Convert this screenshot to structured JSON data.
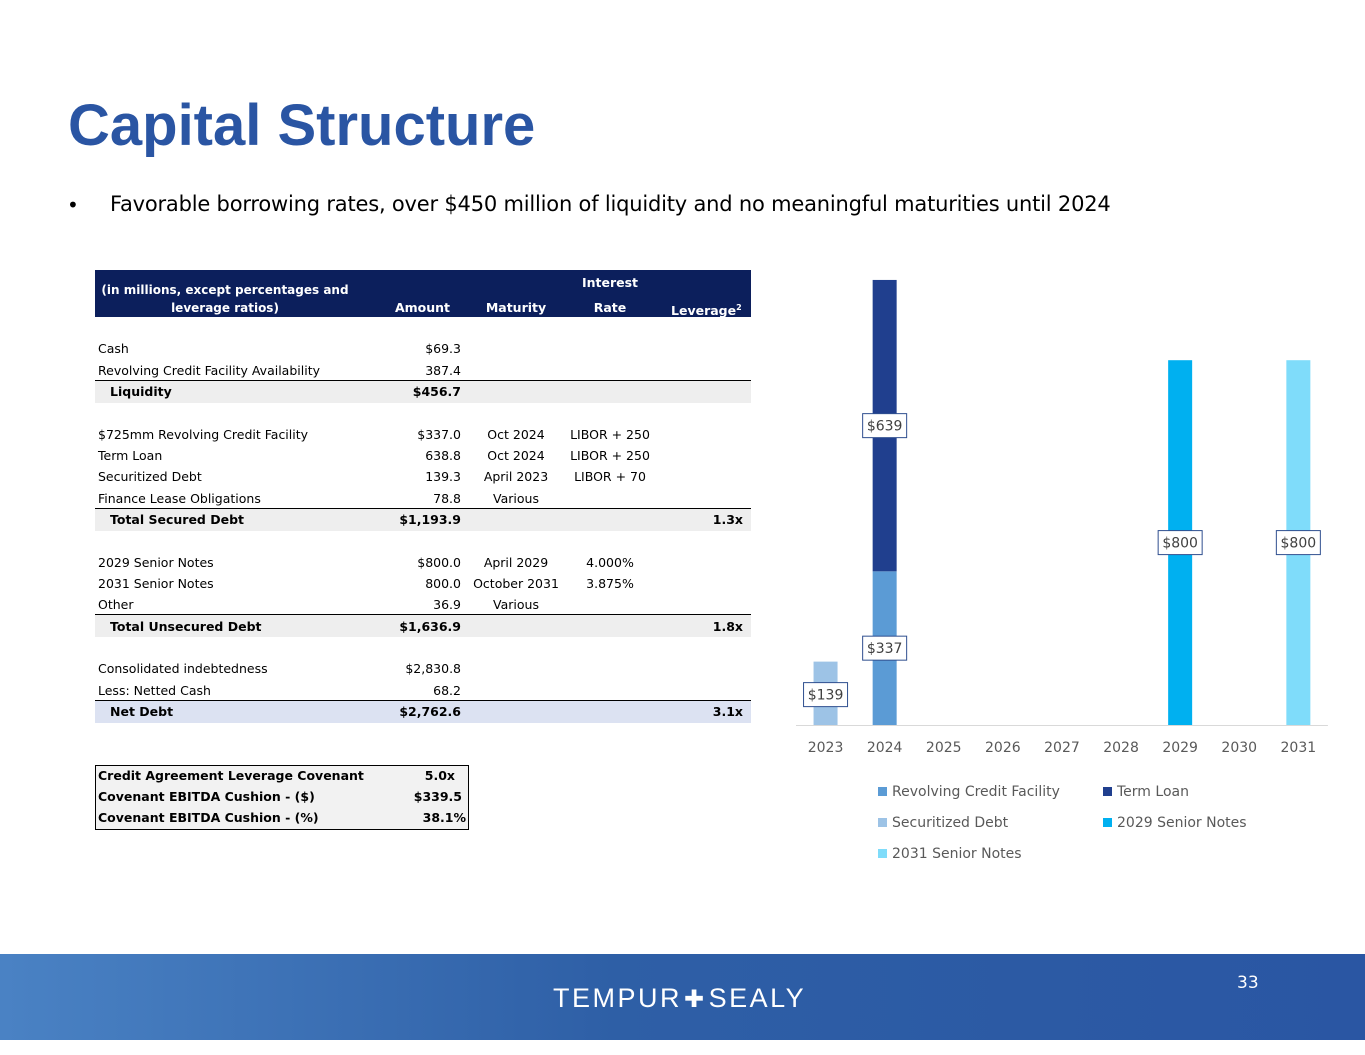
{
  "title": "Capital Structure",
  "bullet": "Favorable borrowing rates, over $450 million of liquidity and no meaningful maturities until 2024",
  "table": {
    "header": {
      "desc_line1": "(in millions, except percentages and",
      "desc_line2": "leverage ratios)",
      "amount": "Amount",
      "maturity": "Maturity",
      "rate_line1": "Interest",
      "rate_line2": "Rate",
      "leverage": "Leverage",
      "leverage_sup": "2"
    },
    "rows": {
      "cash": {
        "label": "Cash",
        "amount": "$69.3"
      },
      "rcfa": {
        "label": "Revolving Credit Facility Availability",
        "amount": "387.4"
      },
      "liquidity": {
        "label": "Liquidity",
        "amount": "$456.7"
      },
      "rcf": {
        "label": "$725mm Revolving Credit Facility",
        "amount": "$337.0",
        "maturity": "Oct 2024",
        "rate": "LIBOR + 250"
      },
      "term": {
        "label": "Term Loan",
        "amount": "638.8",
        "maturity": "Oct 2024",
        "rate": "LIBOR + 250"
      },
      "sec": {
        "label": "Securitized Debt",
        "amount": "139.3",
        "maturity": "April 2023",
        "rate": "LIBOR + 70"
      },
      "flo": {
        "label": "Finance Lease Obligations",
        "amount": "78.8",
        "maturity": "Various"
      },
      "tsd": {
        "label": "Total Secured Debt",
        "amount": "$1,193.9",
        "leverage": "1.3x"
      },
      "sn29": {
        "label": "2029 Senior Notes",
        "amount": "$800.0",
        "maturity": "April 2029",
        "rate": "4.000%"
      },
      "sn31": {
        "label": "2031 Senior Notes",
        "amount": "800.0",
        "maturity": "October 2031",
        "rate": "3.875%"
      },
      "other": {
        "label": "Other",
        "amount": "36.9",
        "maturity": "Various"
      },
      "tud": {
        "label": "Total Unsecured Debt",
        "amount": "$1,636.9",
        "leverage": "1.8x"
      },
      "cons": {
        "label": "Consolidated indebtedness",
        "amount": "$2,830.8"
      },
      "netted": {
        "label": "Less: Netted Cash",
        "amount": "68.2"
      },
      "net": {
        "label": "Net Debt",
        "amount": "$2,762.6",
        "leverage": "3.1x"
      }
    }
  },
  "covenant": {
    "r1": {
      "label": "Credit Agreement Leverage Covenant",
      "value": "5.0x"
    },
    "r2": {
      "label": "Covenant EBITDA Cushion - ($)",
      "value": "$339.5"
    },
    "r3": {
      "label": "Covenant EBITDA Cushion - (%)",
      "value": "38.1%"
    }
  },
  "chart_data": {
    "type": "bar",
    "stacked": true,
    "categories": [
      "2023",
      "2024",
      "2025",
      "2026",
      "2027",
      "2028",
      "2029",
      "2030",
      "2031"
    ],
    "series": [
      {
        "name": "Revolving Credit Facility",
        "color": "#5b9bd5",
        "values": [
          0,
          337,
          0,
          0,
          0,
          0,
          0,
          0,
          0
        ]
      },
      {
        "name": "Term Loan",
        "color": "#203f8e",
        "values": [
          0,
          639,
          0,
          0,
          0,
          0,
          0,
          0,
          0
        ]
      },
      {
        "name": "Securitized Debt",
        "color": "#9dc3e6",
        "values": [
          139,
          0,
          0,
          0,
          0,
          0,
          0,
          0,
          0
        ]
      },
      {
        "name": "2029 Senior Notes",
        "color": "#00b0f0",
        "values": [
          0,
          0,
          0,
          0,
          0,
          0,
          800,
          0,
          0
        ]
      },
      {
        "name": "2031 Senior Notes",
        "color": "#7fdcfa",
        "values": [
          0,
          0,
          0,
          0,
          0,
          0,
          0,
          0,
          800
        ]
      }
    ],
    "data_labels": [
      {
        "category": "2023",
        "series": "Securitized Debt",
        "text": "$139"
      },
      {
        "category": "2024",
        "series": "Revolving Credit Facility",
        "text": "$337"
      },
      {
        "category": "2024",
        "series": "Term Loan",
        "text": "$639"
      },
      {
        "category": "2029",
        "series": "2029 Senior Notes",
        "text": "$800"
      },
      {
        "category": "2031",
        "series": "2031 Senior Notes",
        "text": "$800"
      }
    ],
    "ylim": [
      0,
      1000
    ],
    "grid": false,
    "legend": "bottom"
  },
  "footer": {
    "logo_left": "TEMPUR",
    "logo_right": "SEALY",
    "page": "33"
  }
}
